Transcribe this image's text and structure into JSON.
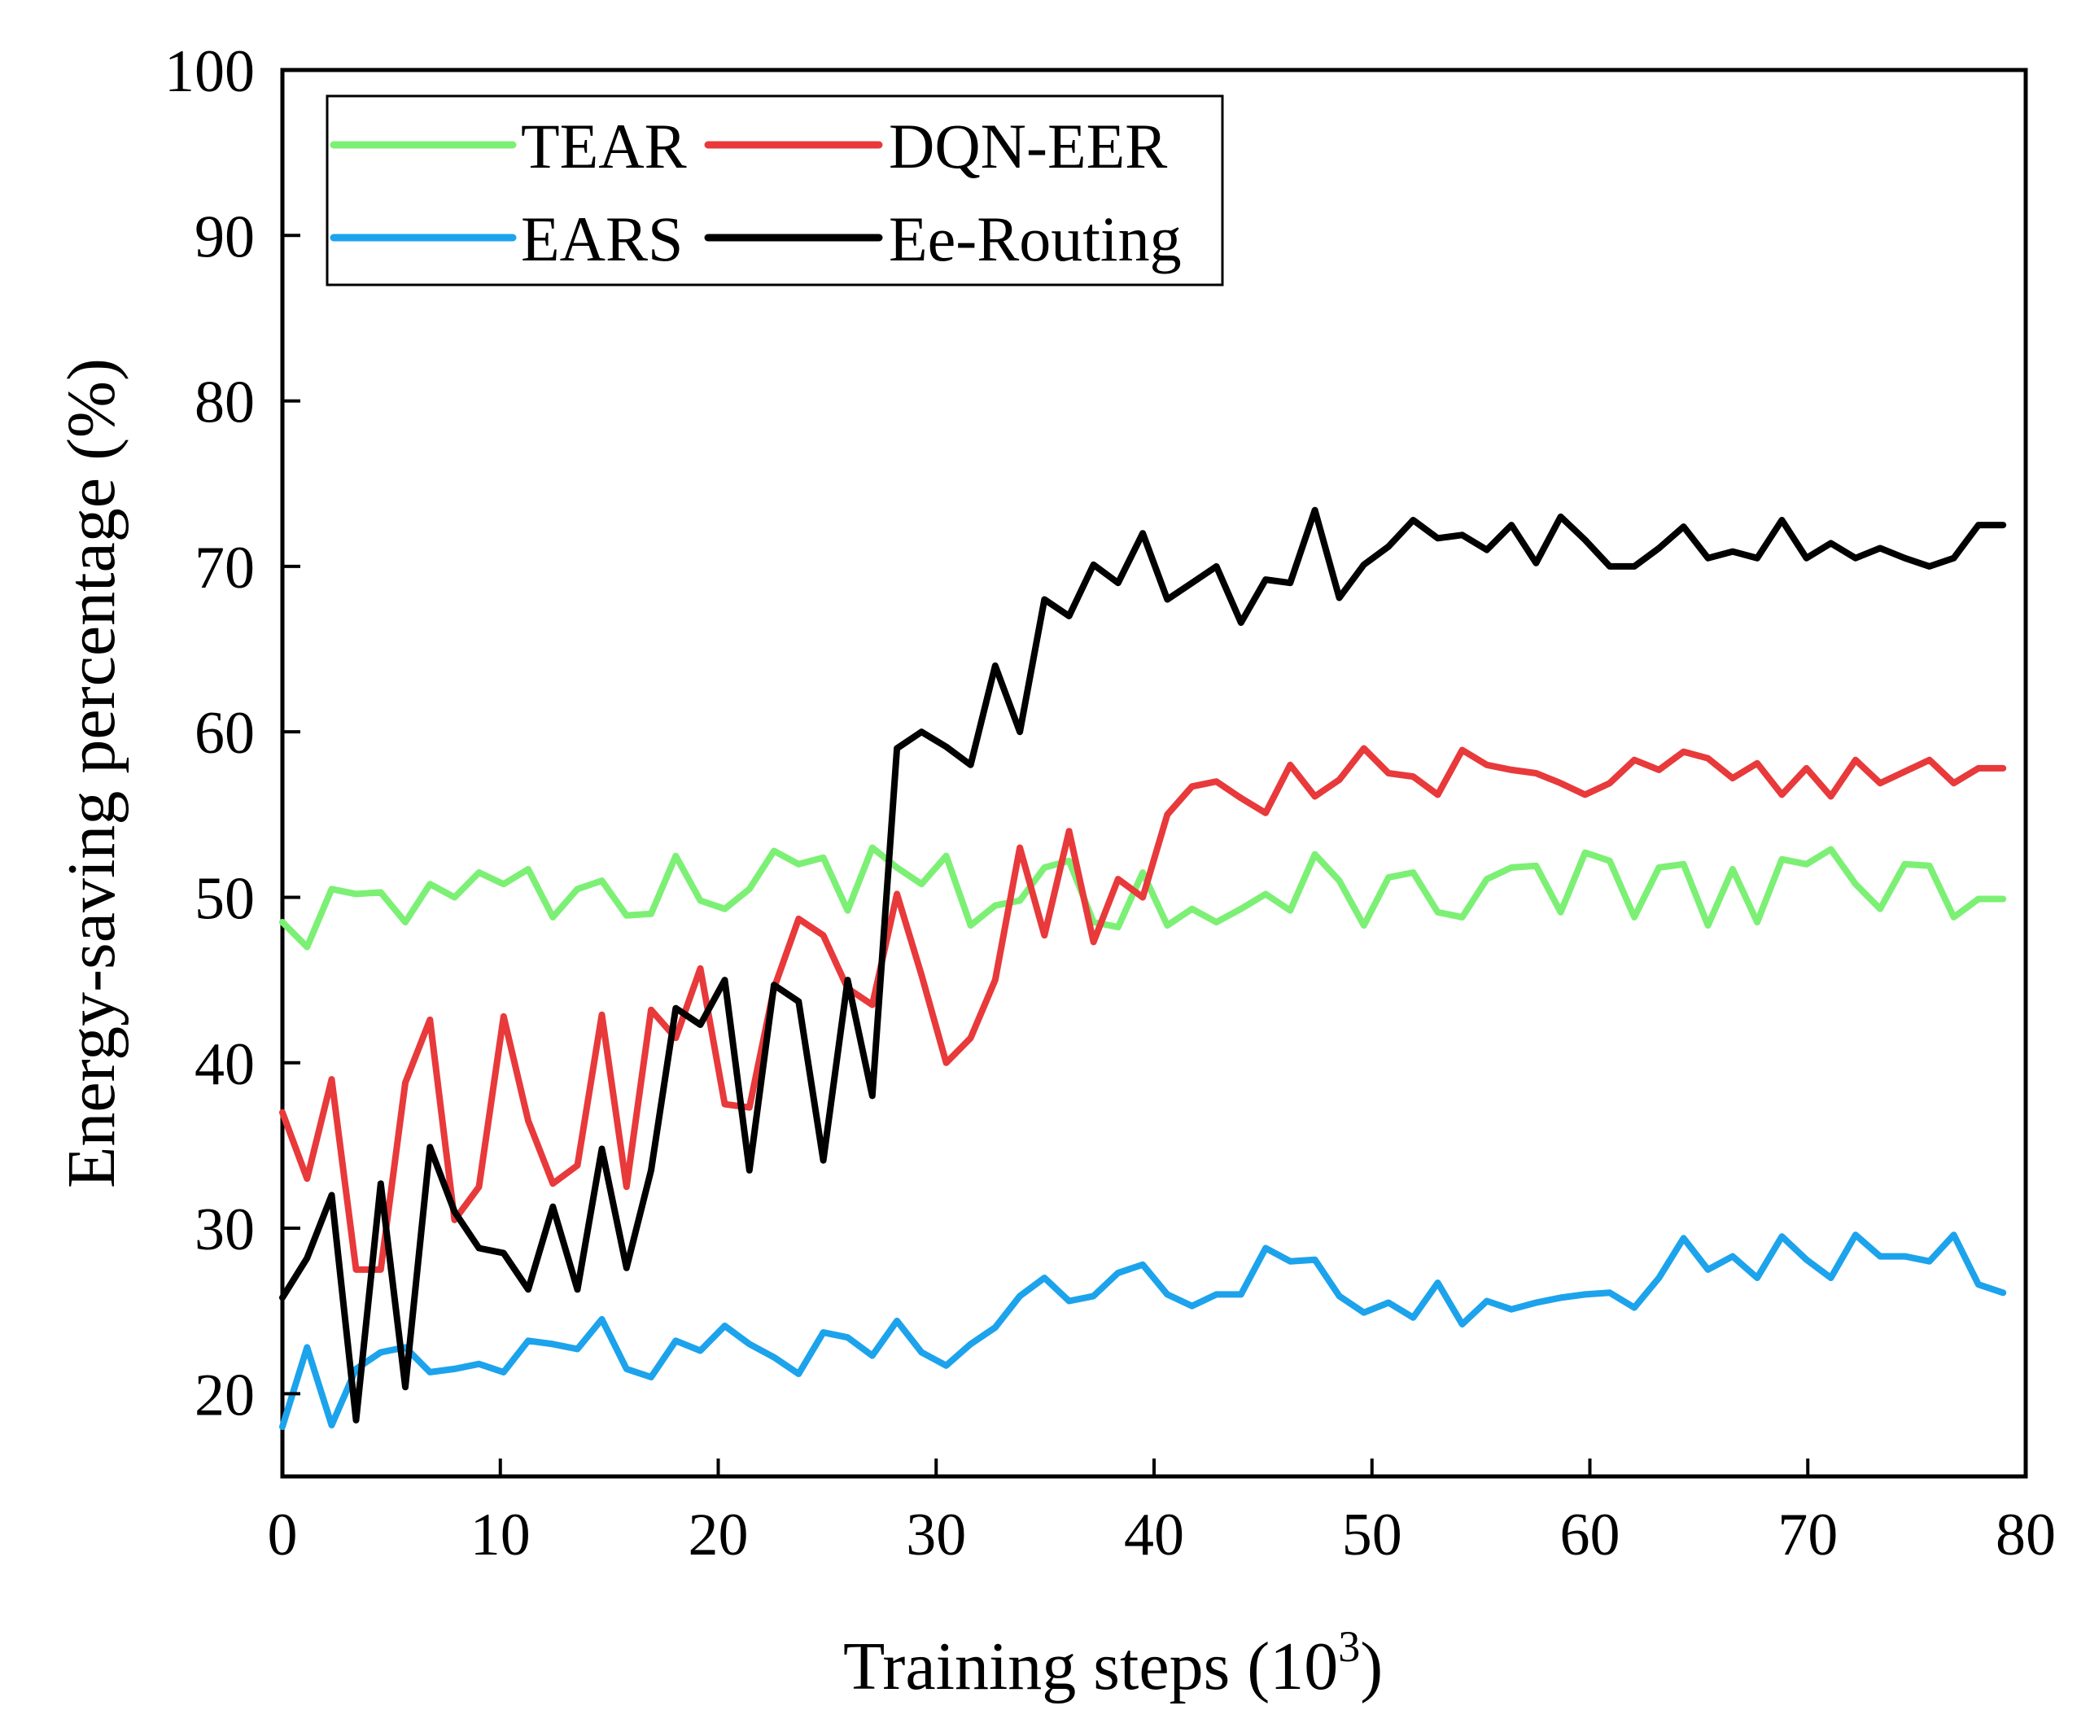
{
  "chart_data": {
    "type": "line",
    "title": "",
    "xlabel": "Training steps (10",
    "xlabel_sup": "3",
    "xlabel_close": ")",
    "ylabel": "Energy-saving percentage (%)",
    "xlim": [
      0,
      80
    ],
    "ylim": [
      15,
      100
    ],
    "xticks": [
      0,
      10,
      20,
      30,
      40,
      50,
      60,
      70,
      80
    ],
    "yticks": [
      20,
      30,
      40,
      50,
      60,
      70,
      80,
      90,
      100
    ],
    "grid": false,
    "legend_position": "top-left",
    "x": [
      0,
      1.13,
      2.26,
      3.38,
      4.51,
      5.64,
      6.77,
      7.9,
      9.02,
      10.15,
      11.28,
      12.41,
      13.54,
      14.66,
      15.79,
      16.92,
      18.05,
      19.18,
      20.3,
      21.43,
      22.56,
      23.69,
      24.82,
      25.94,
      27.07,
      28.2,
      29.33,
      30.46,
      31.58,
      32.71,
      33.84,
      34.97,
      36.1,
      37.22,
      38.35,
      39.48,
      40.61,
      41.74,
      42.86,
      43.99,
      45.12,
      46.25,
      47.38,
      48.5,
      49.63,
      50.76,
      51.89,
      53.02,
      54.14,
      55.27,
      56.4,
      57.53,
      58.66,
      59.78,
      60.91,
      62.04,
      63.17,
      64.3,
      65.42,
      66.55,
      67.68,
      68.81,
      69.94,
      71.06,
      72.19,
      73.32,
      74.45,
      75.58,
      76.7,
      77.83,
      78.96
    ],
    "series": [
      {
        "name": "TEAR",
        "color": "#7cf075",
        "values": [
          48.5,
          47.0,
          50.5,
          50.2,
          50.3,
          48.5,
          50.8,
          50.0,
          51.5,
          50.8,
          51.7,
          48.8,
          50.5,
          51.0,
          48.9,
          49.0,
          52.5,
          49.8,
          49.3,
          50.5,
          52.8,
          52.0,
          52.4,
          49.2,
          53.0,
          51.8,
          50.8,
          52.5,
          48.3,
          49.5,
          49.8,
          51.8,
          52.2,
          48.5,
          48.2,
          51.5,
          48.3,
          49.3,
          48.5,
          49.3,
          50.2,
          49.2,
          52.6,
          51.0,
          48.3,
          51.2,
          51.5,
          49.1,
          48.8,
          51.1,
          51.8,
          51.9,
          49.1,
          52.7,
          52.2,
          48.8,
          51.8,
          52.0,
          48.3,
          51.7,
          48.5,
          52.3,
          52.0,
          52.9,
          50.8,
          49.3,
          52.0,
          51.9,
          48.8,
          49.9,
          49.9
        ]
      },
      {
        "name": "DQN-EER",
        "color": "#e8393b",
        "values": [
          37.0,
          33.0,
          39.0,
          27.5,
          27.5,
          38.8,
          42.6,
          30.5,
          32.5,
          42.8,
          36.5,
          32.7,
          33.8,
          42.9,
          32.5,
          43.2,
          41.5,
          45.7,
          37.5,
          37.3,
          44.5,
          48.7,
          47.7,
          44.5,
          43.5,
          50.2,
          45.3,
          40.0,
          41.5,
          45.0,
          53.0,
          47.7,
          54.0,
          47.3,
          51.1,
          50.0,
          55.0,
          56.7,
          57.0,
          56.0,
          55.1,
          58.0,
          56.1,
          57.1,
          59.0,
          57.5,
          57.3,
          56.2,
          58.9,
          58.0,
          57.7,
          57.5,
          56.9,
          56.2,
          56.9,
          58.3,
          57.7,
          58.8,
          58.4,
          57.2,
          58.1,
          56.2,
          57.8,
          56.1,
          58.3,
          56.9,
          57.6,
          58.3,
          56.9,
          57.8,
          57.8
        ]
      },
      {
        "name": "EARS",
        "color": "#1ca3ec",
        "values": [
          18.0,
          22.8,
          18.1,
          21.5,
          22.5,
          22.8,
          21.3,
          21.5,
          21.8,
          21.3,
          23.2,
          23.0,
          22.7,
          24.5,
          21.5,
          21.0,
          23.2,
          22.6,
          24.1,
          23.0,
          22.2,
          21.2,
          23.7,
          23.4,
          22.3,
          24.4,
          22.5,
          21.7,
          23.0,
          24.0,
          25.9,
          27.0,
          25.6,
          25.9,
          27.3,
          27.8,
          26.0,
          25.3,
          26.0,
          26.0,
          28.8,
          28.0,
          28.1,
          25.9,
          24.9,
          25.5,
          24.6,
          26.7,
          24.2,
          25.6,
          25.1,
          25.5,
          25.8,
          26.0,
          26.1,
          25.2,
          27.0,
          29.4,
          27.5,
          28.3,
          27.0,
          29.5,
          28.1,
          27.0,
          29.6,
          28.3,
          28.3,
          28.0,
          29.6,
          26.6,
          26.1
        ]
      },
      {
        "name": "Ee-Routing",
        "color": "#000000",
        "values": [
          25.8,
          28.2,
          32.0,
          18.4,
          32.7,
          20.4,
          34.9,
          31.0,
          28.8,
          28.5,
          26.3,
          31.3,
          26.3,
          34.8,
          27.6,
          33.5,
          43.3,
          42.3,
          45.0,
          33.5,
          44.7,
          43.7,
          34.1,
          45.0,
          38.0,
          59.0,
          60.0,
          59.1,
          58.0,
          64.0,
          60.0,
          68.0,
          67.0,
          70.1,
          69.0,
          72.0,
          68.0,
          69.0,
          70.0,
          66.6,
          69.2,
          69.0,
          73.4,
          68.1,
          70.1,
          71.2,
          72.8,
          71.7,
          71.9,
          71.0,
          72.5,
          70.2,
          73.0,
          71.6,
          70.0,
          70.0,
          71.1,
          72.4,
          70.5,
          70.9,
          70.5,
          72.8,
          70.5,
          71.4,
          70.5,
          71.1,
          70.5,
          70.0,
          70.5,
          72.5,
          72.5
        ]
      }
    ]
  }
}
